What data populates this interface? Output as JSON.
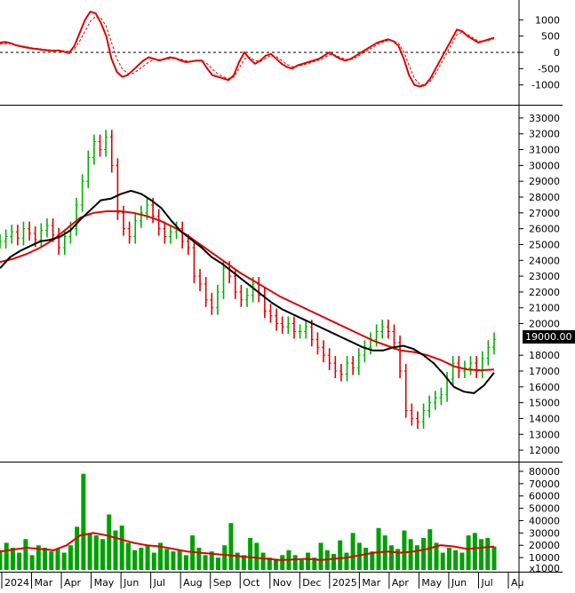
{
  "chart_data": [
    {
      "type": "line",
      "panel": "oscillator",
      "y_ticks": [
        "1000",
        "500",
        "0",
        "-500",
        "-1000"
      ],
      "ylim": [
        -1500,
        1500
      ],
      "zero_line": "dashed",
      "colors": {
        "main": "#e00000",
        "signal": "#e00000"
      },
      "series": [
        {
          "values": [
            300,
            320,
            280,
            220,
            180,
            150,
            120,
            100,
            80,
            60,
            50,
            60,
            20,
            -20,
            200,
            600,
            1000,
            1250,
            1200,
            900,
            500,
            -200,
            -600,
            -750,
            -700,
            -550,
            -400,
            -250,
            -150,
            -200,
            -250,
            -200,
            -150,
            -180,
            -250,
            -300,
            -280,
            -250,
            -250,
            -500,
            -700,
            -750,
            -800,
            -850,
            -700,
            -300,
            0,
            -200,
            -350,
            -250,
            -100,
            -50,
            -200,
            -350,
            -450,
            -500,
            -400,
            -350,
            -300,
            -250,
            -200,
            -100,
            0,
            -100,
            -200,
            -250,
            -200,
            -100,
            0,
            100,
            200,
            300,
            350,
            400,
            350,
            200,
            -200,
            -700,
            -1000,
            -1050,
            -1000,
            -800,
            -500,
            -200,
            100,
            400,
            700,
            650,
            500,
            400,
            300,
            350,
            400,
            450
          ]
        },
        {
          "style": "dashed",
          "values": [
            250,
            270,
            260,
            230,
            200,
            170,
            140,
            120,
            100,
            80,
            70,
            65,
            50,
            30,
            100,
            350,
            650,
            950,
            1100,
            1050,
            800,
            300,
            -200,
            -500,
            -650,
            -650,
            -550,
            -420,
            -300,
            -220,
            -220,
            -220,
            -190,
            -180,
            -210,
            -260,
            -280,
            -270,
            -260,
            -350,
            -520,
            -660,
            -750,
            -800,
            -760,
            -500,
            -200,
            -150,
            -250,
            -280,
            -180,
            -100,
            -130,
            -250,
            -370,
            -440,
            -430,
            -390,
            -340,
            -290,
            -240,
            -160,
            -70,
            -80,
            -150,
            -210,
            -220,
            -160,
            -60,
            40,
            140,
            240,
            310,
            360,
            360,
            280,
            20,
            -400,
            -800,
            -980,
            -1000,
            -880,
            -650,
            -350,
            -50,
            250,
            550,
            620,
            550,
            450,
            350,
            340,
            370,
            420
          ]
        }
      ]
    },
    {
      "type": "line",
      "panel": "price",
      "y_ticks": [
        "33000",
        "32000",
        "31000",
        "30000",
        "29000",
        "28000",
        "27000",
        "26000",
        "25000",
        "24000",
        "23000",
        "22000",
        "21000",
        "20000",
        "18000",
        "17000",
        "16000",
        "15000",
        "14000",
        "13000",
        "12000"
      ],
      "ylim": [
        11500,
        33500
      ],
      "last_price_label": "19000.00",
      "colors": {
        "up_bar": "#00b000",
        "down_bar": "#e00000",
        "ma_short": "#000000",
        "ma_long": "#e00000",
        "price_tag_bg": "#000000"
      },
      "series": [
        {
          "style": "bars",
          "values": [
            25200,
            25500,
            25800,
            25400,
            26000,
            25700,
            25300,
            25900,
            26200,
            25600,
            24800,
            25500,
            26000,
            27500,
            29000,
            30500,
            31500,
            31000,
            31800,
            30000,
            27000,
            26000,
            25500,
            26500,
            27000,
            27500,
            26800,
            26000,
            25500,
            25800,
            26000,
            25200,
            24800,
            23000,
            22500,
            21500,
            21000,
            22000,
            23500,
            23000,
            22000,
            21500,
            21800,
            22500,
            21800,
            20800,
            20500,
            20000,
            19800,
            20000,
            19500,
            19500,
            19800,
            19000,
            18500,
            18000,
            17500,
            17000,
            16800,
            17500,
            17200,
            18000,
            18500,
            19000,
            19500,
            19800,
            19500,
            18800,
            17000,
            14500,
            14000,
            13800,
            14500,
            15000,
            15300,
            15500,
            16500,
            17500,
            17000,
            17200,
            17500,
            17000,
            17800,
            18500,
            19000
          ]
        },
        {
          "name": "ma_short",
          "values": [
            23500,
            24200,
            24600,
            24900,
            25200,
            25300,
            25500,
            25900,
            26600,
            27200,
            27800,
            27900,
            28200,
            28400,
            28200,
            27800,
            27300,
            26500,
            25800,
            25300,
            24800,
            24200,
            23800,
            23300,
            22800,
            22300,
            21800,
            21300,
            20900,
            20600,
            20300,
            20000,
            19700,
            19400,
            19100,
            18800,
            18500,
            18300,
            18300,
            18500,
            18600,
            18400,
            18000,
            17500,
            16800,
            16000,
            15700,
            15600,
            16100,
            16900
          ]
        },
        {
          "name": "ma_long",
          "values": [
            23900,
            24100,
            24400,
            24800,
            25300,
            26000,
            26700,
            27000,
            27100,
            27100,
            27000,
            26800,
            26500,
            26100,
            25600,
            25000,
            24400,
            23800,
            23200,
            22700,
            22200,
            21700,
            21300,
            20900,
            20500,
            20100,
            19700,
            19300,
            18900,
            18600,
            18300,
            18200,
            18000,
            17700,
            17300,
            17100,
            17050,
            17100
          ]
        }
      ]
    },
    {
      "type": "bar",
      "panel": "volume",
      "y_ticks": [
        "80000",
        "70000",
        "60000",
        "50000",
        "40000",
        "30000",
        "20000",
        "10000"
      ],
      "unit_label": "x1000",
      "ylim": [
        0,
        85000
      ],
      "colors": {
        "bars": "#00a000",
        "ma": "#e00000"
      },
      "series": [
        {
          "values": [
            16000,
            22000,
            18000,
            14000,
            25000,
            12000,
            20000,
            18000,
            15000,
            17000,
            14000,
            20000,
            35000,
            78000,
            30000,
            28000,
            25000,
            45000,
            32000,
            36000,
            22000,
            16000,
            18000,
            20000,
            14000,
            22000,
            17000,
            15000,
            16000,
            12000,
            28000,
            18000,
            12000,
            15000,
            10000,
            20000,
            38000,
            14000,
            12000,
            26000,
            22000,
            14000,
            10000,
            9000,
            12000,
            16000,
            12000,
            8000,
            14000,
            10000,
            22000,
            16000,
            13000,
            24000,
            14000,
            30000,
            22000,
            18000,
            15000,
            34000,
            28000,
            20000,
            17000,
            32000,
            25000,
            20000,
            26000,
            33000,
            22000,
            14000,
            18000,
            16000,
            14000,
            28000,
            30000,
            25000,
            26000,
            19000
          ]
        },
        {
          "name": "ma",
          "values": [
            15000,
            16500,
            18000,
            17000,
            16000,
            20000,
            28000,
            30000,
            28000,
            25000,
            22000,
            20000,
            19000,
            17000,
            15000,
            14000,
            13000,
            12000,
            11000,
            10000,
            9000,
            8000,
            8500,
            9000,
            8000,
            9000,
            10000,
            12000,
            14000,
            15000,
            14000,
            15000,
            17000,
            20000,
            19000,
            17000,
            18000,
            19000
          ]
        }
      ]
    }
  ],
  "time_axis": {
    "labels": [
      "2024",
      "Mar",
      "Apr",
      "May",
      "Jun",
      "Jul",
      "Aug",
      "Sep",
      "Oct",
      "Nov",
      "Dec",
      "2025",
      "Mar",
      "Apr",
      "May",
      "Jun",
      "Jul",
      "Au"
    ]
  }
}
